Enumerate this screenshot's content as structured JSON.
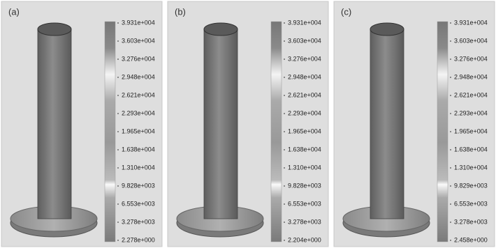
{
  "panels": [
    {
      "label": "(a)",
      "scale": [
        "3.931e+004",
        "3.603e+004",
        "3.276e+004",
        "2.948e+004",
        "2.621e+004",
        "2.293e+004",
        "1.965e+004",
        "1.638e+004",
        "1.310e+004",
        "9.828e+003",
        "6.553e+003",
        "3.278e+003",
        "2.278e+000"
      ]
    },
    {
      "label": "(b)",
      "scale": [
        "3.931e+004",
        "3.603e+004",
        "3.276e+004",
        "2.948e+004",
        "2.621e+004",
        "2.293e+004",
        "1.965e+004",
        "1.638e+004",
        "1.310e+004",
        "9.828e+003",
        "6.553e+003",
        "3.278e+003",
        "2.204e+000"
      ]
    },
    {
      "label": "(c)",
      "scale": [
        "3.931e+004",
        "3.603e+004",
        "3.276e+004",
        "2.948e+004",
        "2.621e+004",
        "2.293e+004",
        "1.965e+004",
        "1.638e+004",
        "1.310e+004",
        "9.829e+003",
        "6.553e+003",
        "3.278e+003",
        "2.458e+000"
      ]
    }
  ]
}
